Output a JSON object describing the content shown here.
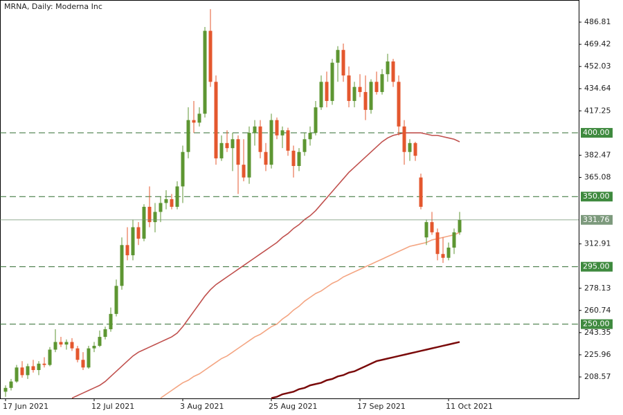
{
  "chart_data": {
    "type": "candlestick",
    "title": "MRNA, Daily:  Moderna Inc",
    "categories": [
      "17 Jun 2021",
      null,
      null,
      null,
      null,
      null,
      null,
      null,
      null,
      null,
      null,
      null,
      null,
      null,
      null,
      null,
      "12 Jul 2021",
      null,
      null,
      null,
      null,
      null,
      null,
      null,
      null,
      null,
      null,
      null,
      null,
      null,
      null,
      null,
      "3 Aug 2021",
      null,
      null,
      null,
      null,
      null,
      null,
      null,
      null,
      null,
      null,
      null,
      null,
      null,
      null,
      null,
      "25 Aug 2021",
      null,
      null,
      null,
      null,
      null,
      null,
      null,
      null,
      null,
      null,
      null,
      null,
      null,
      null,
      null,
      "17 Sep 2021",
      null,
      null,
      null,
      null,
      null,
      null,
      null,
      null,
      null,
      null,
      null,
      null,
      null,
      null,
      null,
      "11 Oct 2021",
      null,
      null
    ],
    "open": [
      197,
      200,
      205,
      216,
      210,
      217,
      214,
      219,
      218,
      230,
      236,
      234,
      236,
      231,
      222,
      216,
      231,
      233,
      240,
      246,
      258,
      280,
      312,
      304,
      326,
      317,
      342,
      330,
      338,
      345,
      348,
      342,
      358,
      385,
      410,
      408,
      415,
      480,
      440,
      380,
      392,
      388,
      395,
      375,
      365,
      400,
      405,
      385,
      375,
      410,
      398,
      402,
      386,
      374,
      385,
      395,
      400,
      420,
      440,
      425,
      455,
      465,
      445,
      425,
      436,
      432,
      418,
      440,
      432,
      446,
      456,
      440,
      405,
      385,
      392,
      365,
      318,
      330,
      322,
      305,
      302,
      310,
      322
    ],
    "high": [
      202,
      207,
      218,
      221,
      219,
      222,
      221,
      224,
      232,
      246,
      240,
      238,
      239,
      233,
      228,
      233,
      236,
      245,
      248,
      263,
      285,
      318,
      326,
      332,
      330,
      344,
      358,
      345,
      350,
      355,
      352,
      362,
      390,
      420,
      425,
      420,
      483,
      497,
      445,
      398,
      402,
      400,
      398,
      395,
      405,
      410,
      410,
      392,
      415,
      412,
      405,
      404,
      390,
      388,
      400,
      405,
      425,
      445,
      448,
      458,
      468,
      470,
      452,
      440,
      446,
      445,
      442,
      448,
      450,
      462,
      458,
      445,
      410,
      395,
      393,
      368,
      332,
      338,
      325,
      318,
      314,
      325,
      338
    ],
    "low": [
      193,
      198,
      204,
      208,
      207,
      212,
      210,
      216,
      217,
      228,
      232,
      230,
      229,
      220,
      214,
      215,
      228,
      232,
      238,
      244,
      256,
      277,
      300,
      300,
      312,
      315,
      326,
      322,
      330,
      340,
      340,
      340,
      345,
      380,
      400,
      405,
      412,
      436,
      375,
      378,
      385,
      370,
      352,
      362,
      360,
      390,
      380,
      370,
      372,
      395,
      388,
      382,
      365,
      370,
      382,
      390,
      398,
      418,
      420,
      422,
      440,
      440,
      420,
      420,
      428,
      410,
      415,
      430,
      430,
      440,
      436,
      398,
      375,
      378,
      378,
      340,
      312,
      320,
      300,
      298,
      300,
      305,
      320
    ],
    "close": [
      200,
      205,
      216,
      210,
      217,
      214,
      219,
      218,
      230,
      236,
      234,
      236,
      231,
      222,
      216,
      231,
      233,
      240,
      246,
      258,
      280,
      312,
      304,
      326,
      317,
      342,
      330,
      338,
      345,
      348,
      342,
      358,
      385,
      410,
      408,
      415,
      480,
      440,
      380,
      392,
      388,
      395,
      375,
      365,
      400,
      405,
      385,
      375,
      410,
      398,
      402,
      386,
      374,
      385,
      395,
      400,
      420,
      440,
      425,
      455,
      465,
      445,
      425,
      436,
      432,
      418,
      440,
      432,
      446,
      456,
      440,
      405,
      385,
      392,
      382,
      342,
      330,
      322,
      305,
      302,
      310,
      322,
      331.76
    ],
    "up_color": "#5d9632",
    "down_color": "#e4572e",
    "lines": [
      {
        "color": "#c0504d",
        "values": [
          null,
          null,
          null,
          null,
          null,
          null,
          null,
          null,
          null,
          null,
          null,
          null,
          192,
          194,
          196,
          198,
          200,
          202,
          205,
          209,
          213,
          217,
          221,
          225,
          228,
          230,
          232,
          234,
          236,
          238,
          240,
          243,
          248,
          254,
          260,
          266,
          272,
          277,
          281,
          284,
          287,
          290,
          293,
          296,
          299,
          302,
          305,
          308,
          311,
          314,
          318,
          321,
          325,
          328,
          332,
          335,
          339,
          344,
          349,
          354,
          359,
          364,
          369,
          373,
          377,
          381,
          385,
          389,
          393,
          396,
          398,
          399,
          400,
          400,
          400,
          400,
          399,
          398,
          398,
          397,
          396,
          395,
          393
        ]
      },
      {
        "color": "#f4a582",
        "values": [
          null,
          null,
          null,
          null,
          null,
          null,
          null,
          null,
          null,
          null,
          null,
          null,
          null,
          null,
          null,
          null,
          null,
          null,
          null,
          null,
          null,
          null,
          null,
          null,
          null,
          null,
          null,
          null,
          192,
          195,
          198,
          201,
          204,
          206,
          209,
          211,
          214,
          217,
          220,
          223,
          225,
          228,
          231,
          234,
          237,
          240,
          242,
          245,
          248,
          250,
          254,
          257,
          261,
          264,
          268,
          271,
          274,
          276,
          279,
          282,
          284,
          287,
          289,
          291,
          293,
          295,
          297,
          299,
          301,
          303,
          305,
          307,
          309,
          311,
          312,
          313,
          314,
          316,
          317,
          318,
          319,
          320,
          322
        ]
      },
      {
        "color": "#7a0a0a",
        "values": [
          null,
          null,
          null,
          null,
          null,
          null,
          null,
          null,
          null,
          null,
          null,
          null,
          null,
          null,
          null,
          null,
          null,
          null,
          null,
          null,
          null,
          null,
          null,
          null,
          null,
          null,
          null,
          null,
          null,
          null,
          null,
          null,
          null,
          null,
          null,
          null,
          null,
          null,
          null,
          null,
          null,
          null,
          null,
          null,
          null,
          null,
          null,
          null,
          192,
          193,
          195,
          196,
          197,
          199,
          200,
          202,
          203,
          204,
          206,
          207,
          209,
          210,
          212,
          213,
          215,
          217,
          219,
          221,
          222,
          223,
          224,
          225,
          226,
          227,
          228,
          229,
          230,
          231,
          232,
          233,
          234,
          235,
          236
        ]
      }
    ],
    "levels": [
      {
        "value": 400,
        "label": "400.00"
      },
      {
        "value": 350,
        "label": "350.00"
      },
      {
        "value": 295,
        "label": "295.00"
      },
      {
        "value": 250,
        "label": "250.00"
      }
    ],
    "ylim": [
      191.76,
      504.17
    ],
    "yticks": [
      486.81,
      469.42,
      452.03,
      434.64,
      417.25,
      382.47,
      365.08,
      312.91,
      278.13,
      260.74,
      243.35,
      225.96,
      208.57
    ]
  }
}
